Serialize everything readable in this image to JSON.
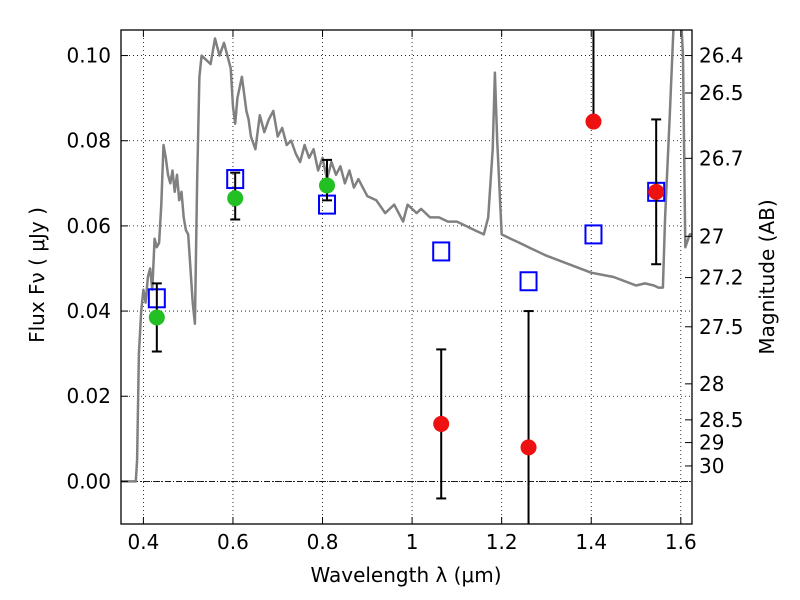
{
  "chart_data": {
    "type": "scatter",
    "xlabel": "Wavelength  λ (μm)",
    "ylabel_left": "Flux  Fν  ( μJy )",
    "ylabel_right": "Magnitude (AB)",
    "xlim": [
      0.35,
      1.625
    ],
    "ylim": [
      -0.01,
      0.106
    ],
    "x_ticks": [
      0.4,
      0.6,
      0.8,
      1.0,
      1.2,
      1.4,
      1.6
    ],
    "x_tick_labels": [
      "0.4",
      "0.6",
      "0.8",
      "1",
      "1.2",
      "1.4",
      "1.6"
    ],
    "y_ticks": [
      0.0,
      0.02,
      0.04,
      0.06,
      0.08,
      0.1
    ],
    "y_tick_labels": [
      "0.00",
      "0.02",
      "0.04",
      "0.06",
      "0.08",
      "0.10"
    ],
    "right_ticks": [
      {
        "value": 26.4,
        "label": "26.4"
      },
      {
        "value": 26.5,
        "label": "26.5"
      },
      {
        "value": 26.7,
        "label": "26.7"
      },
      {
        "value": 27.0,
        "label": "27"
      },
      {
        "value": 27.2,
        "label": "27.2"
      },
      {
        "value": 27.5,
        "label": "27.5"
      },
      {
        "value": 28.0,
        "label": "28"
      },
      {
        "value": 28.5,
        "label": "28.5"
      },
      {
        "value": 29.0,
        "label": "29"
      },
      {
        "value": 30.0,
        "label": "30"
      }
    ],
    "grid": true,
    "zero_line": true,
    "model_spectrum": {
      "color": "#808080",
      "x": [
        0.35,
        0.37,
        0.383,
        0.386,
        0.39,
        0.395,
        0.4,
        0.405,
        0.41,
        0.415,
        0.42,
        0.425,
        0.43,
        0.435,
        0.44,
        0.445,
        0.45,
        0.455,
        0.46,
        0.465,
        0.47,
        0.475,
        0.48,
        0.485,
        0.49,
        0.495,
        0.5,
        0.51,
        0.515,
        0.52,
        0.525,
        0.53,
        0.54,
        0.55,
        0.56,
        0.57,
        0.58,
        0.59,
        0.595,
        0.6,
        0.605,
        0.61,
        0.62,
        0.63,
        0.635,
        0.64,
        0.65,
        0.66,
        0.67,
        0.68,
        0.69,
        0.7,
        0.71,
        0.72,
        0.73,
        0.74,
        0.75,
        0.76,
        0.77,
        0.78,
        0.79,
        0.8,
        0.81,
        0.82,
        0.83,
        0.84,
        0.85,
        0.86,
        0.87,
        0.88,
        0.89,
        0.9,
        0.92,
        0.94,
        0.96,
        0.98,
        0.99,
        1.0,
        1.01,
        1.02,
        1.04,
        1.06,
        1.08,
        1.1,
        1.12,
        1.14,
        1.16,
        1.17,
        1.18,
        1.185,
        1.19,
        1.2,
        1.22,
        1.24,
        1.26,
        1.3,
        1.35,
        1.4,
        1.45,
        1.5,
        1.52,
        1.54,
        1.55,
        1.56,
        1.565,
        1.575,
        1.585,
        1.595,
        1.6,
        1.605,
        1.61,
        1.62,
        1.625
      ],
      "y": [
        0.0,
        0.0,
        0.0,
        0.005,
        0.03,
        0.04,
        0.045,
        0.042,
        0.048,
        0.05,
        0.045,
        0.057,
        0.055,
        0.056,
        0.065,
        0.079,
        0.076,
        0.072,
        0.07,
        0.073,
        0.068,
        0.072,
        0.066,
        0.068,
        0.062,
        0.059,
        0.058,
        0.042,
        0.037,
        0.07,
        0.095,
        0.1,
        0.099,
        0.098,
        0.104,
        0.1,
        0.103,
        0.099,
        0.097,
        0.088,
        0.084,
        0.09,
        0.095,
        0.087,
        0.085,
        0.081,
        0.078,
        0.086,
        0.082,
        0.085,
        0.087,
        0.081,
        0.083,
        0.079,
        0.08,
        0.077,
        0.075,
        0.079,
        0.076,
        0.078,
        0.073,
        0.076,
        0.071,
        0.075,
        0.072,
        0.074,
        0.07,
        0.073,
        0.069,
        0.071,
        0.069,
        0.067,
        0.066,
        0.063,
        0.065,
        0.061,
        0.065,
        0.064,
        0.063,
        0.064,
        0.062,
        0.062,
        0.061,
        0.061,
        0.06,
        0.059,
        0.058,
        0.062,
        0.078,
        0.096,
        0.08,
        0.058,
        0.057,
        0.056,
        0.055,
        0.053,
        0.051,
        0.049,
        0.048,
        0.046,
        0.0465,
        0.046,
        0.0455,
        0.0455,
        0.062,
        0.085,
        0.11,
        0.115,
        0.11,
        0.1,
        0.055,
        0.058,
        0.058
      ]
    },
    "series": [
      {
        "marker": "open-square",
        "color": "#0000ff",
        "x": [
          0.43,
          0.605,
          0.81,
          1.065,
          1.26,
          1.405,
          1.545
        ],
        "y": [
          0.043,
          0.071,
          0.065,
          0.054,
          0.047,
          0.058,
          0.068
        ]
      },
      {
        "marker": "filled-circle",
        "color": "#22c022",
        "x": [
          0.43,
          0.605,
          0.81
        ],
        "y": [
          0.0385,
          0.0665,
          0.0695
        ],
        "yerr_low": [
          0.008,
          0.005,
          0.0035
        ],
        "yerr_high": [
          0.008,
          0.006,
          0.006
        ]
      },
      {
        "marker": "filled-circle",
        "color": "#ee1111",
        "x": [
          1.065,
          1.26,
          1.405,
          1.545
        ],
        "y": [
          0.0135,
          0.008,
          0.0845,
          0.068
        ],
        "yerr_low": [
          0.0175,
          0.018,
          0.0,
          0.017
        ],
        "yerr_high": [
          0.0175,
          0.032,
          0.1,
          0.017
        ]
      }
    ]
  }
}
